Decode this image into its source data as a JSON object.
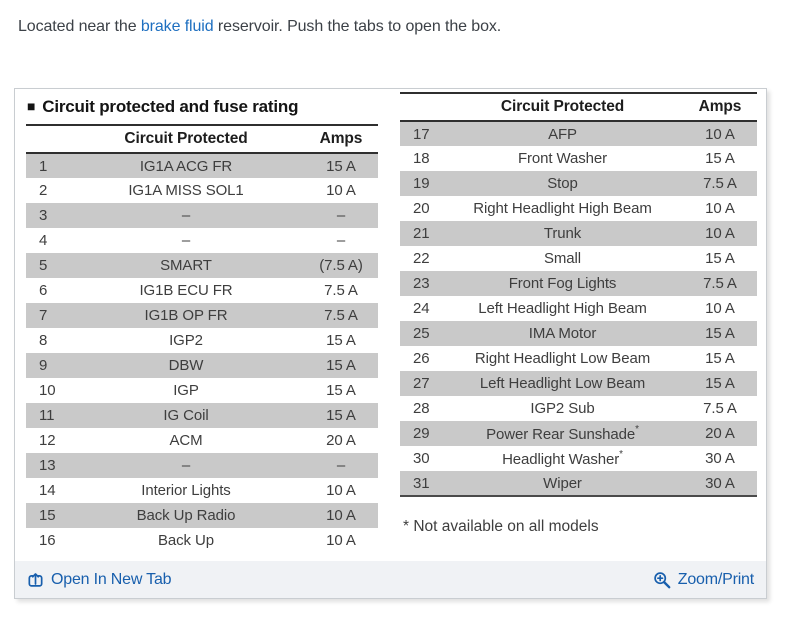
{
  "intro": {
    "prefix": "Located near the ",
    "link": "brake fluid",
    "suffix": " reservoir. Push the tabs to open the box."
  },
  "section": {
    "marker": "■",
    "title": "Circuit protected and fuse rating"
  },
  "tables": [
    {
      "headers": {
        "num": "",
        "circuit": "Circuit Protected",
        "amps": "Amps"
      },
      "rows": [
        {
          "num": "1",
          "circuit": "IG1A ACG FR",
          "amps": "15 A",
          "shaded": true
        },
        {
          "num": "2",
          "circuit": "IG1A MISS SOL1",
          "amps": "10 A",
          "shaded": false
        },
        {
          "num": "3",
          "circuit": "–",
          "amps": "–",
          "shaded": true
        },
        {
          "num": "4",
          "circuit": "–",
          "amps": "–",
          "shaded": false
        },
        {
          "num": "5",
          "circuit": "SMART",
          "amps": "(7.5 A)",
          "shaded": true
        },
        {
          "num": "6",
          "circuit": "IG1B ECU FR",
          "amps": "7.5 A",
          "shaded": false
        },
        {
          "num": "7",
          "circuit": "IG1B OP FR",
          "amps": "7.5 A",
          "shaded": true
        },
        {
          "num": "8",
          "circuit": "IGP2",
          "amps": "15 A",
          "shaded": false
        },
        {
          "num": "9",
          "circuit": "DBW",
          "amps": "15 A",
          "shaded": true
        },
        {
          "num": "10",
          "circuit": "IGP",
          "amps": "15 A",
          "shaded": false
        },
        {
          "num": "11",
          "circuit": "IG Coil",
          "amps": "15 A",
          "shaded": true
        },
        {
          "num": "12",
          "circuit": "ACM",
          "amps": "20 A",
          "shaded": false
        },
        {
          "num": "13",
          "circuit": "–",
          "amps": "–",
          "shaded": true
        },
        {
          "num": "14",
          "circuit": "Interior Lights",
          "amps": "10 A",
          "shaded": false
        },
        {
          "num": "15",
          "circuit": "Back Up Radio",
          "amps": "10 A",
          "shaded": true
        },
        {
          "num": "16",
          "circuit": "Back Up",
          "amps": "10 A",
          "shaded": false
        }
      ]
    },
    {
      "headers": {
        "num": "",
        "circuit": "Circuit Protected",
        "amps": "Amps"
      },
      "rows": [
        {
          "num": "17",
          "circuit": "AFP",
          "amps": "10 A",
          "shaded": true
        },
        {
          "num": "18",
          "circuit": "Front Washer",
          "amps": "15 A",
          "shaded": false
        },
        {
          "num": "19",
          "circuit": "Stop",
          "amps": "7.5 A",
          "shaded": true
        },
        {
          "num": "20",
          "circuit": "Right Headlight High Beam",
          "amps": "10 A",
          "shaded": false
        },
        {
          "num": "21",
          "circuit": "Trunk",
          "amps": "10 A",
          "shaded": true
        },
        {
          "num": "22",
          "circuit": "Small",
          "amps": "15 A",
          "shaded": false
        },
        {
          "num": "23",
          "circuit": "Front Fog Lights",
          "amps": "7.5 A",
          "shaded": true
        },
        {
          "num": "24",
          "circuit": "Left Headlight High Beam",
          "amps": "10 A",
          "shaded": false
        },
        {
          "num": "25",
          "circuit": "IMA Motor",
          "amps": "15 A",
          "shaded": true
        },
        {
          "num": "26",
          "circuit": "Right Headlight Low Beam",
          "amps": "15 A",
          "shaded": false
        },
        {
          "num": "27",
          "circuit": "Left Headlight Low Beam",
          "amps": "15 A",
          "shaded": true
        },
        {
          "num": "28",
          "circuit": "IGP2 Sub",
          "amps": "7.5 A",
          "shaded": false
        },
        {
          "num": "29",
          "circuit": "Power Rear Sunshade*",
          "amps": "20 A",
          "shaded": true
        },
        {
          "num": "30",
          "circuit": "Headlight Washer*",
          "amps": "30 A",
          "shaded": false
        },
        {
          "num": "31",
          "circuit": "Wiper",
          "amps": "30 A",
          "shaded": true
        }
      ]
    }
  ],
  "footnote": "* Not available on all models",
  "footer": {
    "open_label": "Open In New Tab",
    "zoom_label": "Zoom/Print"
  },
  "colors": {
    "row_shade": "#c9c9c9",
    "link_blue": "#1e6fc0",
    "footer_link": "#185fad",
    "footer_bg": "#f0f2f5"
  },
  "icons": {
    "open_in_new_tab": "open-in-new-tab-icon",
    "zoom": "magnifier-plus-icon"
  }
}
